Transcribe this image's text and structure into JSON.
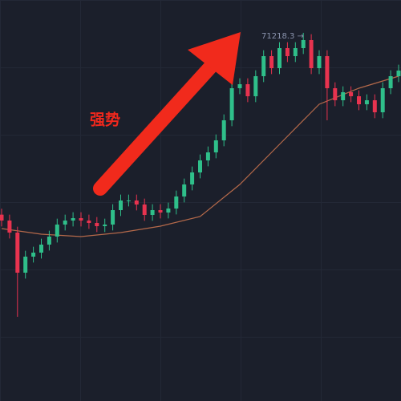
{
  "chart_data": {
    "type": "candlestick",
    "ylim": [
      40000,
      74000
    ],
    "up_color": "#2fbf8a",
    "down_color": "#e8334f",
    "open": [
      55800,
      55300,
      54280,
      50880,
      52240,
      52580,
      53260,
      53940,
      54960,
      55300,
      55504,
      55300,
      55096,
      54824,
      54960,
      56184,
      57000,
      57000,
      56660,
      55776,
      56184,
      55980,
      56320,
      57340,
      58360,
      59380,
      60400,
      61080,
      62100,
      63800,
      66520,
      66860,
      65840,
      67540,
      69240,
      68220,
      69920,
      69240,
      69920,
      70600,
      68220,
      69240,
      66520,
      65500,
      66180,
      65840,
      65160,
      65500,
      64480,
      66520,
      67540
    ],
    "high": [
      56300,
      55800,
      54780,
      52740,
      53080,
      53760,
      54440,
      55460,
      55800,
      56004,
      56004,
      55800,
      55596,
      55460,
      56684,
      57500,
      57500,
      57500,
      57160,
      56684,
      56684,
      56820,
      57840,
      58860,
      59880,
      60900,
      61580,
      62600,
      64300,
      67020,
      67360,
      67360,
      68040,
      69740,
      69740,
      70420,
      70420,
      70420,
      71218.3,
      71100,
      69740,
      69740,
      67020,
      66680,
      66680,
      66340,
      66000,
      66000,
      67020,
      68040,
      68516
    ],
    "low": [
      54800,
      53780,
      47140,
      50380,
      51740,
      52080,
      52760,
      53440,
      54460,
      54800,
      54800,
      54596,
      54324,
      54324,
      54460,
      55684,
      56500,
      56160,
      55276,
      55276,
      55480,
      55480,
      55820,
      56840,
      57860,
      58880,
      59900,
      60580,
      61600,
      63300,
      66020,
      65340,
      65340,
      67040,
      67720,
      67720,
      68740,
      68740,
      69420,
      67720,
      67720,
      63800,
      65000,
      65000,
      65340,
      64660,
      64660,
      63980,
      63980,
      66020,
      67040
    ],
    "close": [
      55300,
      54280,
      50880,
      52240,
      52580,
      53260,
      53940,
      54960,
      55300,
      55504,
      55300,
      55096,
      54824,
      54960,
      56184,
      57000,
      57000,
      56660,
      55776,
      56184,
      55980,
      56320,
      57340,
      58360,
      59380,
      60400,
      61080,
      62100,
      63800,
      66520,
      66860,
      65840,
      67540,
      69240,
      68220,
      69920,
      69240,
      69920,
      70600,
      68220,
      69240,
      66520,
      65500,
      66180,
      65840,
      65160,
      65500,
      64480,
      66520,
      67540,
      68016
    ],
    "moving_average": {
      "color": "#b5694a",
      "x": [
        0,
        5,
        10,
        15,
        20,
        25,
        30,
        35,
        40,
        45,
        50
      ],
      "values": [
        54620,
        54144,
        53940,
        54280,
        54824,
        55640,
        58360,
        61760,
        65160,
        66520,
        67540
      ]
    },
    "annotations": [
      "强势",
      "71218.3 →"
    ]
  }
}
